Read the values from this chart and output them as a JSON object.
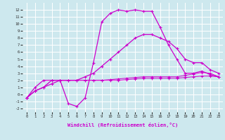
{
  "xlabel": "Windchill (Refroidissement éolien,°C)",
  "background_color": "#cde8ee",
  "grid_color": "#ffffff",
  "line_color": "#cc00cc",
  "hours": [
    0,
    1,
    2,
    3,
    4,
    5,
    6,
    7,
    8,
    9,
    10,
    11,
    12,
    13,
    14,
    15,
    16,
    17,
    18,
    19,
    20,
    21,
    22,
    23
  ],
  "line1": [
    -0.5,
    1.0,
    2.0,
    2.0,
    2.0,
    -1.3,
    -1.7,
    -0.5,
    4.5,
    10.3,
    11.5,
    12.0,
    11.8,
    12.0,
    11.8,
    11.8,
    9.5,
    7.0,
    5.0,
    3.0,
    3.0,
    3.3,
    2.8,
    2.5
  ],
  "line2": [
    -0.5,
    0.5,
    1.0,
    1.5,
    2.0,
    2.0,
    2.0,
    2.5,
    3.0,
    4.0,
    5.0,
    6.0,
    7.0,
    8.0,
    8.5,
    8.5,
    8.0,
    7.5,
    6.5,
    5.0,
    4.5,
    4.5,
    3.5,
    3.0
  ],
  "line3": [
    -0.5,
    0.5,
    1.0,
    2.0,
    2.0,
    2.0,
    2.0,
    2.0,
    2.0,
    2.0,
    2.1,
    2.2,
    2.3,
    2.4,
    2.5,
    2.5,
    2.5,
    2.5,
    2.5,
    2.7,
    2.9,
    3.1,
    3.0,
    2.5
  ],
  "line4": [
    -0.5,
    0.5,
    1.0,
    2.0,
    2.0,
    2.0,
    2.0,
    2.0,
    2.0,
    2.0,
    2.0,
    2.0,
    2.1,
    2.2,
    2.3,
    2.3,
    2.3,
    2.3,
    2.3,
    2.4,
    2.5,
    2.6,
    2.6,
    2.5
  ],
  "ylim": [
    -2.5,
    13.0
  ],
  "xlim": [
    -0.5,
    23.5
  ]
}
